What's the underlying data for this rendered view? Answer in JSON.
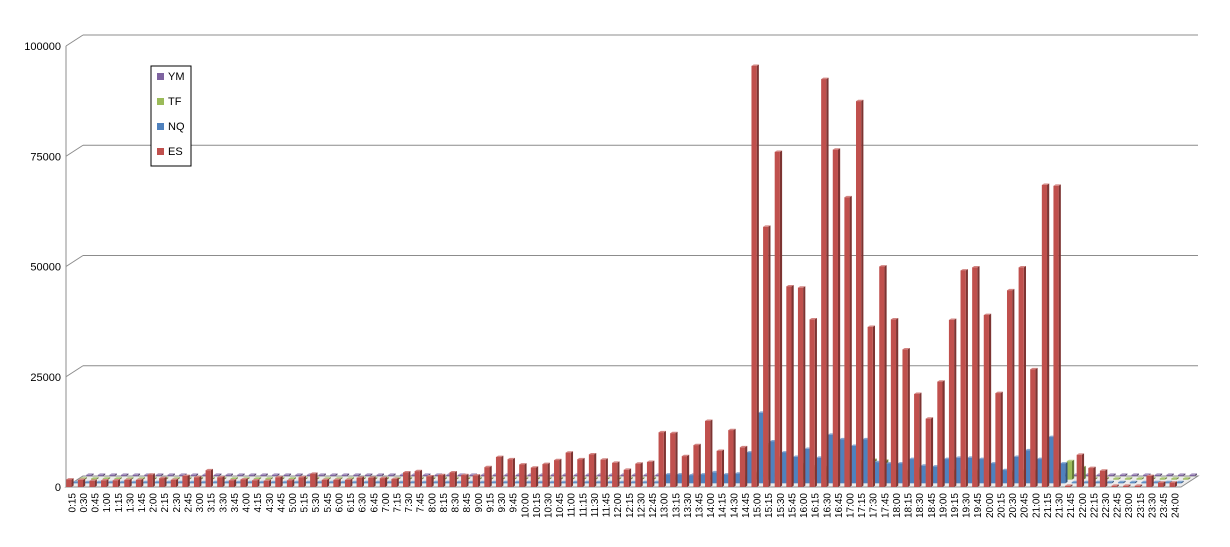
{
  "chart_data": {
    "type": "bar",
    "style": "3d-clustered-column",
    "title": "",
    "xlabel": "",
    "ylabel": "",
    "ylim": [
      0,
      100000
    ],
    "yticks": [
      0,
      25000,
      50000,
      75000,
      100000
    ],
    "grid": true,
    "legend_position": "top-left",
    "legend_order": [
      "YM",
      "TF",
      "NQ",
      "ES"
    ],
    "categories": [
      "0:15",
      "0:30",
      "0:45",
      "1:00",
      "1:15",
      "1:30",
      "1:45",
      "2:00",
      "2:15",
      "2:30",
      "2:45",
      "3:00",
      "3:15",
      "3:30",
      "3:45",
      "4:00",
      "4:15",
      "4:30",
      "4:45",
      "5:00",
      "5:15",
      "5:30",
      "5:45",
      "6:00",
      "6:15",
      "6:30",
      "6:45",
      "7:00",
      "7:15",
      "7:30",
      "7:45",
      "8:00",
      "8:15",
      "8:30",
      "8:45",
      "9:00",
      "9:15",
      "9:30",
      "9:45",
      "10:00",
      "10:15",
      "10:30",
      "10:45",
      "11:00",
      "11:15",
      "11:30",
      "11:45",
      "12:00",
      "12:15",
      "12:30",
      "12:45",
      "13:00",
      "13:15",
      "13:30",
      "13:45",
      "14:00",
      "14:15",
      "14:30",
      "14:45",
      "15:00",
      "15:15",
      "15:30",
      "15:45",
      "16:00",
      "16:15",
      "16:30",
      "16:45",
      "17:00",
      "17:15",
      "17:30",
      "17:45",
      "18:00",
      "18:15",
      "18:30",
      "18:45",
      "19:00",
      "19:15",
      "19:30",
      "19:45",
      "20:00",
      "20:15",
      "20:30",
      "20:45",
      "21:00",
      "21:15",
      "21:30",
      "21:45",
      "22:00",
      "22:15",
      "22:30",
      "22:45",
      "23:00",
      "23:15",
      "23:30",
      "23:45",
      "24:00"
    ],
    "series": [
      {
        "name": "YM",
        "color": "#7e63a0",
        "values": [
          0,
          0,
          0,
          0,
          0,
          0,
          0,
          0,
          0,
          0,
          0,
          0,
          0,
          0,
          0,
          0,
          0,
          0,
          0,
          0,
          0,
          0,
          0,
          0,
          0,
          0,
          0,
          0,
          0,
          0,
          0,
          0,
          0,
          0,
          0,
          0,
          0,
          0,
          0,
          0,
          0,
          0,
          0,
          0,
          0,
          0,
          0,
          0,
          0,
          0,
          0,
          100,
          100,
          100,
          100,
          100,
          100,
          100,
          300,
          400,
          400,
          300,
          300,
          300,
          300,
          300,
          300,
          300,
          300,
          300,
          200,
          200,
          200,
          200,
          200,
          200,
          200,
          200,
          200,
          200,
          200,
          200,
          200,
          200,
          200,
          200,
          100,
          0,
          0,
          0,
          0,
          0,
          0,
          0,
          0,
          0
        ]
      },
      {
        "name": "TF",
        "color": "#9bbb59",
        "values": [
          0,
          0,
          0,
          0,
          0,
          0,
          0,
          0,
          0,
          0,
          0,
          0,
          0,
          0,
          0,
          0,
          0,
          0,
          0,
          0,
          0,
          0,
          0,
          0,
          0,
          0,
          0,
          0,
          0,
          0,
          0,
          0,
          0,
          0,
          0,
          0,
          0,
          0,
          0,
          0,
          0,
          0,
          0,
          0,
          0,
          0,
          0,
          0,
          0,
          0,
          0,
          500,
          500,
          400,
          500,
          600,
          500,
          600,
          1500,
          8000,
          5000,
          4500,
          3500,
          3000,
          2800,
          4000,
          4200,
          4200,
          4500,
          4300,
          2000,
          2000,
          2500,
          1800,
          1500,
          2000,
          2000,
          2000,
          2000,
          2000,
          1800,
          2000,
          2000,
          2000,
          2000,
          4200,
          2800,
          0,
          0,
          0,
          0,
          0,
          0,
          0,
          0,
          0
        ]
      },
      {
        "name": "NQ",
        "color": "#4f81bd",
        "values": [
          0,
          0,
          0,
          0,
          0,
          0,
          0,
          0,
          0,
          0,
          0,
          0,
          0,
          0,
          0,
          0,
          0,
          0,
          0,
          0,
          0,
          0,
          0,
          0,
          0,
          0,
          0,
          0,
          0,
          0,
          0,
          0,
          0,
          0,
          0,
          0,
          0,
          0,
          0,
          0,
          0,
          0,
          0,
          0,
          0,
          0,
          0,
          0,
          0,
          0,
          0,
          2000,
          2000,
          1800,
          2000,
          2500,
          2000,
          2200,
          7000,
          16000,
          9500,
          7000,
          6000,
          7800,
          5800,
          11000,
          10000,
          8500,
          10000,
          4800,
          4500,
          4500,
          5500,
          4000,
          3800,
          5500,
          5800,
          5800,
          5500,
          4500,
          3000,
          6000,
          7500,
          5500,
          10500,
          4500,
          0,
          0,
          0,
          0,
          0,
          0,
          0,
          0,
          0,
          0
        ]
      },
      {
        "name": "ES",
        "color": "#c0504d",
        "values": [
          1700,
          1600,
          1400,
          1500,
          1500,
          1600,
          1600,
          2800,
          2000,
          1600,
          2500,
          2200,
          3800,
          2200,
          1500,
          1700,
          1500,
          1400,
          2200,
          1500,
          2200,
          3000,
          1600,
          1600,
          1600,
          2100,
          2100,
          2000,
          1800,
          3300,
          3600,
          2400,
          2700,
          3300,
          2700,
          2600,
          4500,
          6800,
          6300,
          5100,
          4400,
          5200,
          6100,
          7800,
          6300,
          7400,
          6200,
          5500,
          3900,
          5300,
          5700,
          12400,
          12200,
          7000,
          9500,
          15000,
          8200,
          12900,
          9000,
          95500,
          59000,
          76000,
          45500,
          45200,
          38000,
          92500,
          76500,
          65700,
          87500,
          36300,
          50000,
          38000,
          31200,
          21100,
          15500,
          23900,
          37900,
          49100,
          49800,
          39000,
          21300,
          44600,
          49800,
          26700,
          68500,
          68300,
          0,
          7300,
          4300,
          3700,
          0,
          0,
          0,
          2500,
          1000,
          1000
        ]
      }
    ]
  }
}
